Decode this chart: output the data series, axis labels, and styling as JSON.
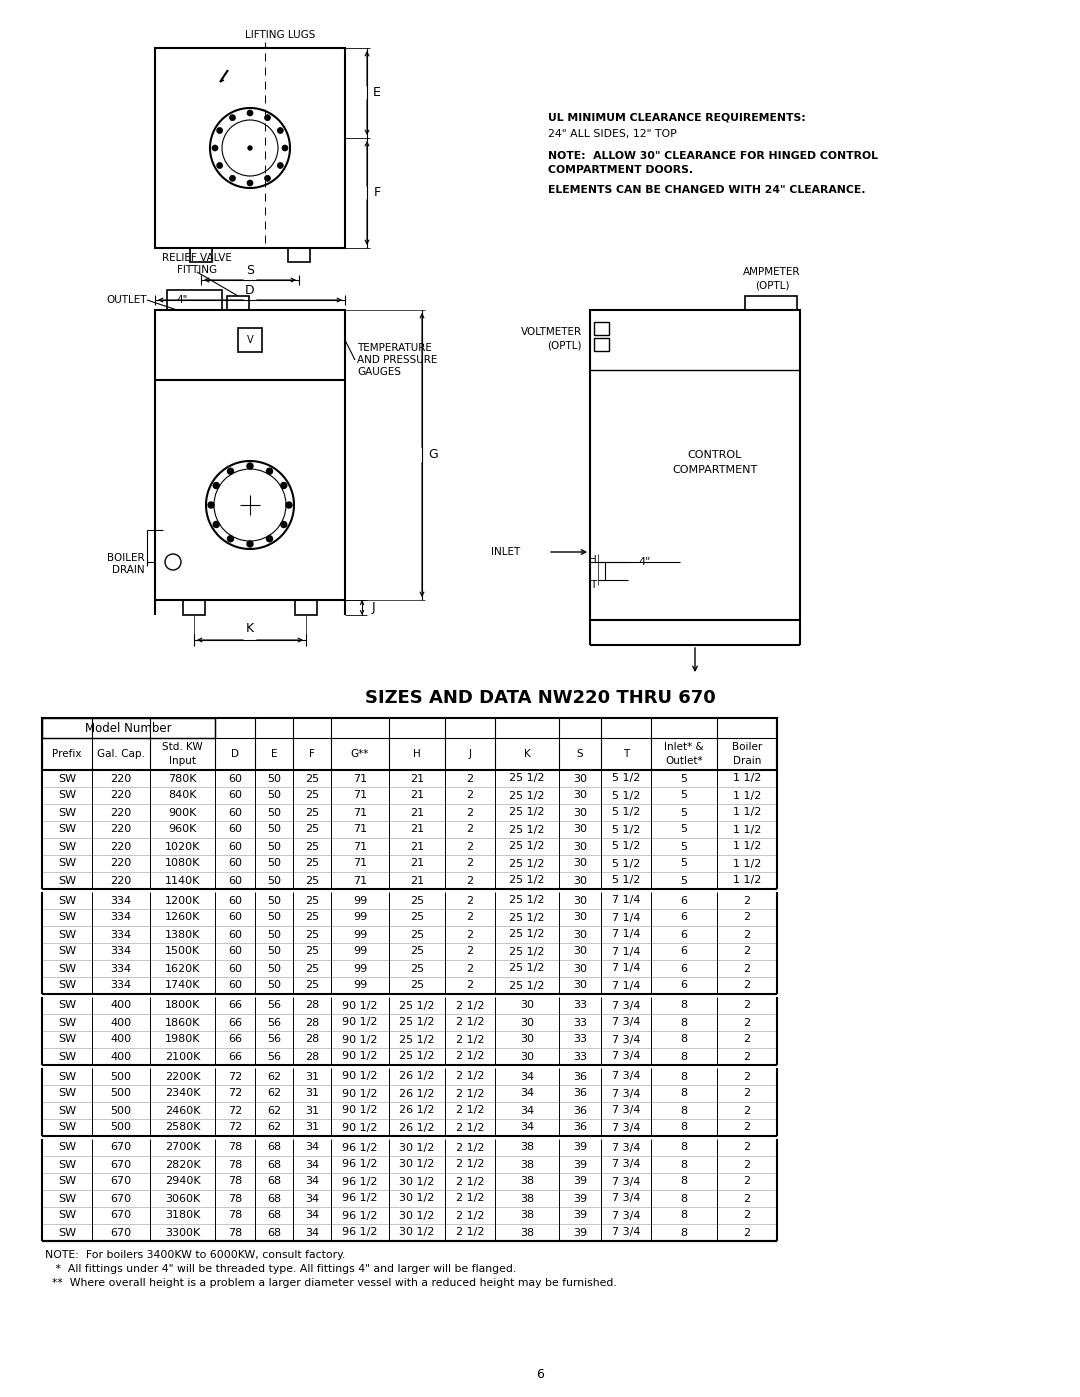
{
  "title": "SIZES AND DATA NW220 THRU 670",
  "page_number": "6",
  "background_color": "#ffffff",
  "col_headers": [
    "Prefix",
    "Gal. Cap.",
    "Std. KW\nInput",
    "D",
    "E",
    "F",
    "G**",
    "H",
    "J",
    "K",
    "S",
    "T",
    "Inlet* &\nOutlet*",
    "Boiler\nDrain"
  ],
  "groups": [
    {
      "rows": [
        [
          "SW",
          "220",
          "780K",
          "60",
          "50",
          "25",
          "71",
          "21",
          "2",
          "25 1/2",
          "30",
          "5 1/2",
          "5",
          "1 1/2"
        ],
        [
          "SW",
          "220",
          "840K",
          "60",
          "50",
          "25",
          "71",
          "21",
          "2",
          "25 1/2",
          "30",
          "5 1/2",
          "5",
          "1 1/2"
        ],
        [
          "SW",
          "220",
          "900K",
          "60",
          "50",
          "25",
          "71",
          "21",
          "2",
          "25 1/2",
          "30",
          "5 1/2",
          "5",
          "1 1/2"
        ],
        [
          "SW",
          "220",
          "960K",
          "60",
          "50",
          "25",
          "71",
          "21",
          "2",
          "25 1/2",
          "30",
          "5 1/2",
          "5",
          "1 1/2"
        ],
        [
          "SW",
          "220",
          "1020K",
          "60",
          "50",
          "25",
          "71",
          "21",
          "2",
          "25 1/2",
          "30",
          "5 1/2",
          "5",
          "1 1/2"
        ],
        [
          "SW",
          "220",
          "1080K",
          "60",
          "50",
          "25",
          "71",
          "21",
          "2",
          "25 1/2",
          "30",
          "5 1/2",
          "5",
          "1 1/2"
        ],
        [
          "SW",
          "220",
          "1140K",
          "60",
          "50",
          "25",
          "71",
          "21",
          "2",
          "25 1/2",
          "30",
          "5 1/2",
          "5",
          "1 1/2"
        ]
      ]
    },
    {
      "rows": [
        [
          "SW",
          "334",
          "1200K",
          "60",
          "50",
          "25",
          "99",
          "25",
          "2",
          "25 1/2",
          "30",
          "7 1/4",
          "6",
          "2"
        ],
        [
          "SW",
          "334",
          "1260K",
          "60",
          "50",
          "25",
          "99",
          "25",
          "2",
          "25 1/2",
          "30",
          "7 1/4",
          "6",
          "2"
        ],
        [
          "SW",
          "334",
          "1380K",
          "60",
          "50",
          "25",
          "99",
          "25",
          "2",
          "25 1/2",
          "30",
          "7 1/4",
          "6",
          "2"
        ],
        [
          "SW",
          "334",
          "1500K",
          "60",
          "50",
          "25",
          "99",
          "25",
          "2",
          "25 1/2",
          "30",
          "7 1/4",
          "6",
          "2"
        ],
        [
          "SW",
          "334",
          "1620K",
          "60",
          "50",
          "25",
          "99",
          "25",
          "2",
          "25 1/2",
          "30",
          "7 1/4",
          "6",
          "2"
        ],
        [
          "SW",
          "334",
          "1740K",
          "60",
          "50",
          "25",
          "99",
          "25",
          "2",
          "25 1/2",
          "30",
          "7 1/4",
          "6",
          "2"
        ]
      ]
    },
    {
      "rows": [
        [
          "SW",
          "400",
          "1800K",
          "66",
          "56",
          "28",
          "90 1/2",
          "25 1/2",
          "2 1/2",
          "30",
          "33",
          "7 3/4",
          "8",
          "2"
        ],
        [
          "SW",
          "400",
          "1860K",
          "66",
          "56",
          "28",
          "90 1/2",
          "25 1/2",
          "2 1/2",
          "30",
          "33",
          "7 3/4",
          "8",
          "2"
        ],
        [
          "SW",
          "400",
          "1980K",
          "66",
          "56",
          "28",
          "90 1/2",
          "25 1/2",
          "2 1/2",
          "30",
          "33",
          "7 3/4",
          "8",
          "2"
        ],
        [
          "SW",
          "400",
          "2100K",
          "66",
          "56",
          "28",
          "90 1/2",
          "25 1/2",
          "2 1/2",
          "30",
          "33",
          "7 3/4",
          "8",
          "2"
        ]
      ]
    },
    {
      "rows": [
        [
          "SW",
          "500",
          "2200K",
          "72",
          "62",
          "31",
          "90 1/2",
          "26 1/2",
          "2 1/2",
          "34",
          "36",
          "7 3/4",
          "8",
          "2"
        ],
        [
          "SW",
          "500",
          "2340K",
          "72",
          "62",
          "31",
          "90 1/2",
          "26 1/2",
          "2 1/2",
          "34",
          "36",
          "7 3/4",
          "8",
          "2"
        ],
        [
          "SW",
          "500",
          "2460K",
          "72",
          "62",
          "31",
          "90 1/2",
          "26 1/2",
          "2 1/2",
          "34",
          "36",
          "7 3/4",
          "8",
          "2"
        ],
        [
          "SW",
          "500",
          "2580K",
          "72",
          "62",
          "31",
          "90 1/2",
          "26 1/2",
          "2 1/2",
          "34",
          "36",
          "7 3/4",
          "8",
          "2"
        ]
      ]
    },
    {
      "rows": [
        [
          "SW",
          "670",
          "2700K",
          "78",
          "68",
          "34",
          "96 1/2",
          "30 1/2",
          "2 1/2",
          "38",
          "39",
          "7 3/4",
          "8",
          "2"
        ],
        [
          "SW",
          "670",
          "2820K",
          "78",
          "68",
          "34",
          "96 1/2",
          "30 1/2",
          "2 1/2",
          "38",
          "39",
          "7 3/4",
          "8",
          "2"
        ],
        [
          "SW",
          "670",
          "2940K",
          "78",
          "68",
          "34",
          "96 1/2",
          "30 1/2",
          "2 1/2",
          "38",
          "39",
          "7 3/4",
          "8",
          "2"
        ],
        [
          "SW",
          "670",
          "3060K",
          "78",
          "68",
          "34",
          "96 1/2",
          "30 1/2",
          "2 1/2",
          "38",
          "39",
          "7 3/4",
          "8",
          "2"
        ],
        [
          "SW",
          "670",
          "3180K",
          "78",
          "68",
          "34",
          "96 1/2",
          "30 1/2",
          "2 1/2",
          "38",
          "39",
          "7 3/4",
          "8",
          "2"
        ],
        [
          "SW",
          "670",
          "3300K",
          "78",
          "68",
          "34",
          "96 1/2",
          "30 1/2",
          "2 1/2",
          "38",
          "39",
          "7 3/4",
          "8",
          "2"
        ]
      ]
    }
  ],
  "notes": [
    "NOTE:  For boilers 3400KW to 6000KW, consult factory.",
    "   *  All fittings under 4\" will be threaded type. All fittings 4\" and larger will be flanged.",
    "  **  Where overall height is a problem a larger diameter vessel with a reduced height may be furnished."
  ],
  "ul_notes_line1": "UL MINIMUM CLEARANCE REQUIREMENTS:",
  "ul_notes_line2": "24\" ALL SIDES, 12\" TOP",
  "ul_notes_line3": "NOTE:  ALLOW 30\" CLEARANCE FOR HINGED CONTROL",
  "ul_notes_line4": "COMPARTMENT DOORS.",
  "ul_notes_line5": "ELEMENTS CAN BE CHANGED WITH 24\" CLEARANCE."
}
